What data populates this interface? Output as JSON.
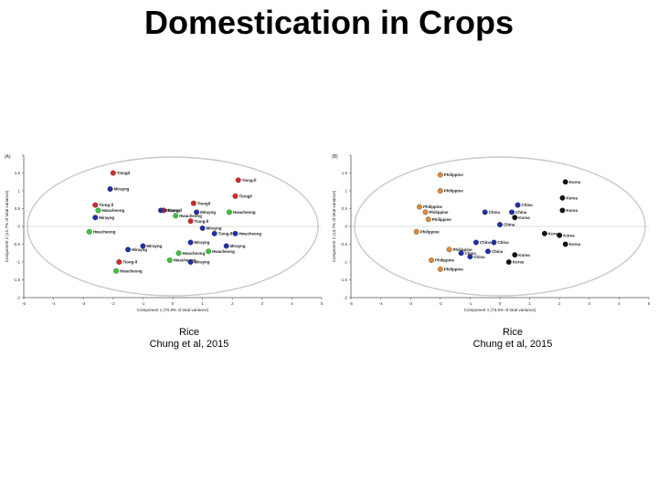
{
  "title": "Domestication in Crops",
  "captions": [
    {
      "line1": "Rice",
      "line2": "Chung et al, 2015"
    },
    {
      "line1": "Rice",
      "line2": "Chung et al, 2015"
    }
  ],
  "colors": {
    "red": "#d62828",
    "blue": "#1f2fa8",
    "green": "#3cc43c",
    "orange": "#e08a3c",
    "black": "#111111",
    "ellipse": "#c8c8c8"
  },
  "chart_data": [
    {
      "type": "scatter",
      "panel": "(A)",
      "xlabel": "Component 1 (70.8% of total variance)",
      "ylabel": "Component 2 (12.7% of total variance)",
      "xlim": [
        -5,
        5
      ],
      "ylim": [
        -2,
        2
      ],
      "xticks": [
        -5,
        -4,
        -3,
        -2,
        -1,
        0,
        1,
        2,
        3,
        4,
        5
      ],
      "yticks": [
        -2,
        -1.5,
        -1,
        -0.5,
        0,
        0.5,
        1,
        1.5,
        2
      ],
      "ytick_labels": [
        "-2",
        "-1.5",
        "-1",
        "-0.5",
        "0",
        "0.5",
        "1",
        "1.5",
        ""
      ],
      "points": [
        {
          "x": -2.0,
          "y": 1.5,
          "label": "Tiongil",
          "color": "red"
        },
        {
          "x": 2.2,
          "y": 1.3,
          "label": "Tiong-ll",
          "color": "red"
        },
        {
          "x": -2.1,
          "y": 1.05,
          "label": "Mirayng",
          "color": "blue"
        },
        {
          "x": 2.1,
          "y": 0.85,
          "label": "Tiongil",
          "color": "red"
        },
        {
          "x": -2.6,
          "y": 0.6,
          "label": "Tiong-ll",
          "color": "red"
        },
        {
          "x": 0.7,
          "y": 0.65,
          "label": "Tiongil",
          "color": "red"
        },
        {
          "x": -2.5,
          "y": 0.45,
          "label": "Hwacheong",
          "color": "green"
        },
        {
          "x": -0.3,
          "y": 0.45,
          "label": "Tiong-ll",
          "color": "red"
        },
        {
          "x": -0.4,
          "y": 0.45,
          "label": "Mirayng",
          "color": "blue"
        },
        {
          "x": 0.8,
          "y": 0.4,
          "label": "Mirayng",
          "color": "blue"
        },
        {
          "x": 1.9,
          "y": 0.4,
          "label": "Hwacheong",
          "color": "green"
        },
        {
          "x": -2.6,
          "y": 0.25,
          "label": "Mirayng",
          "color": "blue"
        },
        {
          "x": 0.1,
          "y": 0.3,
          "label": "Hwacheong",
          "color": "green"
        },
        {
          "x": 0.6,
          "y": 0.15,
          "label": "Tiong-ll",
          "color": "red"
        },
        {
          "x": 1.0,
          "y": -0.05,
          "label": "Mirayng",
          "color": "blue"
        },
        {
          "x": -2.8,
          "y": -0.15,
          "label": "Hwacheong",
          "color": "green"
        },
        {
          "x": 1.4,
          "y": -0.2,
          "label": "Tiong-ll",
          "color": "blue"
        },
        {
          "x": 2.1,
          "y": -0.2,
          "label": "Hwacheong",
          "color": "blue"
        },
        {
          "x": 0.6,
          "y": -0.45,
          "label": "Mirayng",
          "color": "blue"
        },
        {
          "x": 1.8,
          "y": -0.55,
          "label": "Mirayng",
          "color": "blue"
        },
        {
          "x": -1.0,
          "y": -0.55,
          "label": "Mirayng",
          "color": "blue"
        },
        {
          "x": -1.5,
          "y": -0.65,
          "label": "Mirayng",
          "color": "blue"
        },
        {
          "x": 0.2,
          "y": -0.75,
          "label": "Hwacheong",
          "color": "green"
        },
        {
          "x": 1.2,
          "y": -0.7,
          "label": "Hwacheong",
          "color": "green"
        },
        {
          "x": -0.1,
          "y": -0.95,
          "label": "Hwacheong",
          "color": "green"
        },
        {
          "x": 0.6,
          "y": -1.0,
          "label": "Mirayng",
          "color": "blue"
        },
        {
          "x": -1.8,
          "y": -1.0,
          "label": "Tiong-ll",
          "color": "red"
        },
        {
          "x": -1.9,
          "y": -1.25,
          "label": "Hwacheong",
          "color": "green"
        }
      ]
    },
    {
      "type": "scatter",
      "panel": "(B)",
      "xlabel": "Component 1 (73.5% of total variance)",
      "ylabel": "Component 2 (13.7% of total variance)",
      "xlim": [
        -5,
        5
      ],
      "ylim": [
        -2,
        2
      ],
      "xticks": [
        -5,
        -4,
        -3,
        -2,
        -1,
        0,
        1,
        2,
        3,
        4,
        5
      ],
      "yticks": [
        -2,
        -1.5,
        -1,
        -0.5,
        0,
        0.5,
        1,
        1.5,
        2
      ],
      "ytick_labels": [
        "-2",
        "-1.5",
        "-1",
        "-0.5",
        "0",
        "0.5",
        "1",
        "1.5",
        ""
      ],
      "points": [
        {
          "x": -2.0,
          "y": 1.45,
          "label": "Philippine",
          "color": "orange"
        },
        {
          "x": -2.0,
          "y": 1.0,
          "label": "Philippine",
          "color": "orange"
        },
        {
          "x": 2.2,
          "y": 1.25,
          "label": "Korea",
          "color": "black"
        },
        {
          "x": 2.1,
          "y": 0.8,
          "label": "Korea",
          "color": "black"
        },
        {
          "x": -2.7,
          "y": 0.55,
          "label": "Philippine",
          "color": "orange"
        },
        {
          "x": -2.5,
          "y": 0.4,
          "label": "Philippine",
          "color": "orange"
        },
        {
          "x": -2.4,
          "y": 0.2,
          "label": "Philippine",
          "color": "orange"
        },
        {
          "x": 0.6,
          "y": 0.6,
          "label": "China",
          "color": "blue"
        },
        {
          "x": -0.5,
          "y": 0.4,
          "label": "China",
          "color": "blue"
        },
        {
          "x": 0.4,
          "y": 0.4,
          "label": "China",
          "color": "blue"
        },
        {
          "x": 0.5,
          "y": 0.25,
          "label": "Korea",
          "color": "black"
        },
        {
          "x": 2.1,
          "y": 0.45,
          "label": "Korea",
          "color": "black"
        },
        {
          "x": 0.0,
          "y": 0.05,
          "label": "China",
          "color": "blue"
        },
        {
          "x": -2.8,
          "y": -0.15,
          "label": "Philippine",
          "color": "orange"
        },
        {
          "x": 1.5,
          "y": -0.2,
          "label": "Korea",
          "color": "black"
        },
        {
          "x": 2.0,
          "y": -0.25,
          "label": "Korea",
          "color": "black"
        },
        {
          "x": -0.8,
          "y": -0.45,
          "label": "China",
          "color": "blue"
        },
        {
          "x": -0.2,
          "y": -0.45,
          "label": "China",
          "color": "blue"
        },
        {
          "x": 2.2,
          "y": -0.5,
          "label": "Korea",
          "color": "black"
        },
        {
          "x": -1.7,
          "y": -0.65,
          "label": "Philippine",
          "color": "orange"
        },
        {
          "x": -0.4,
          "y": -0.7,
          "label": "China",
          "color": "blue"
        },
        {
          "x": 0.5,
          "y": -0.8,
          "label": "Korea",
          "color": "black"
        },
        {
          "x": -1.3,
          "y": -0.75,
          "label": "China",
          "color": "blue"
        },
        {
          "x": -1.0,
          "y": -0.85,
          "label": "China",
          "color": "blue"
        },
        {
          "x": -2.3,
          "y": -0.95,
          "label": "Philippine",
          "color": "orange"
        },
        {
          "x": 0.3,
          "y": -1.0,
          "label": "Korea",
          "color": "black"
        },
        {
          "x": -2.0,
          "y": -1.2,
          "label": "Philippine",
          "color": "orange"
        }
      ]
    }
  ]
}
